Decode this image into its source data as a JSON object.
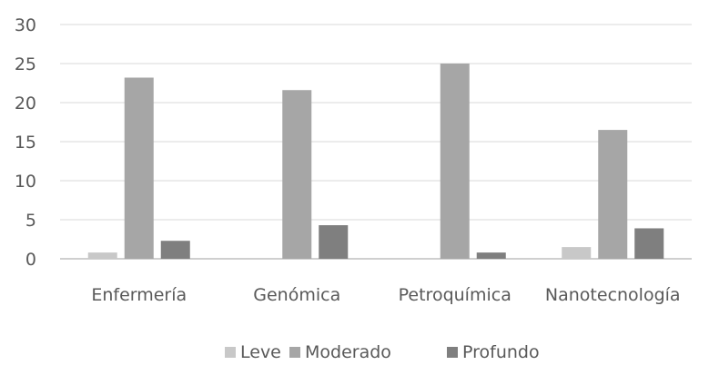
{
  "chart_data": {
    "type": "bar",
    "categories": [
      "Enfermería",
      "Genómica",
      "Petroquímica",
      "Nanotecnología"
    ],
    "series": [
      {
        "name": "Leve",
        "values": [
          0.8,
          0,
          0,
          1.5
        ],
        "color": "#c8c8c8"
      },
      {
        "name": "Moderado",
        "values": [
          23.2,
          21.6,
          25.0,
          16.5
        ],
        "color": "#a6a6a6"
      },
      {
        "name": "Profundo",
        "values": [
          2.3,
          4.3,
          0.8,
          3.9
        ],
        "color": "#7f7f7f"
      }
    ],
    "yticks": [
      "0",
      "5",
      "10",
      "15",
      "20",
      "25",
      "30"
    ],
    "ylim": [
      0,
      30
    ],
    "grid": true,
    "legend_position": "bottom"
  }
}
